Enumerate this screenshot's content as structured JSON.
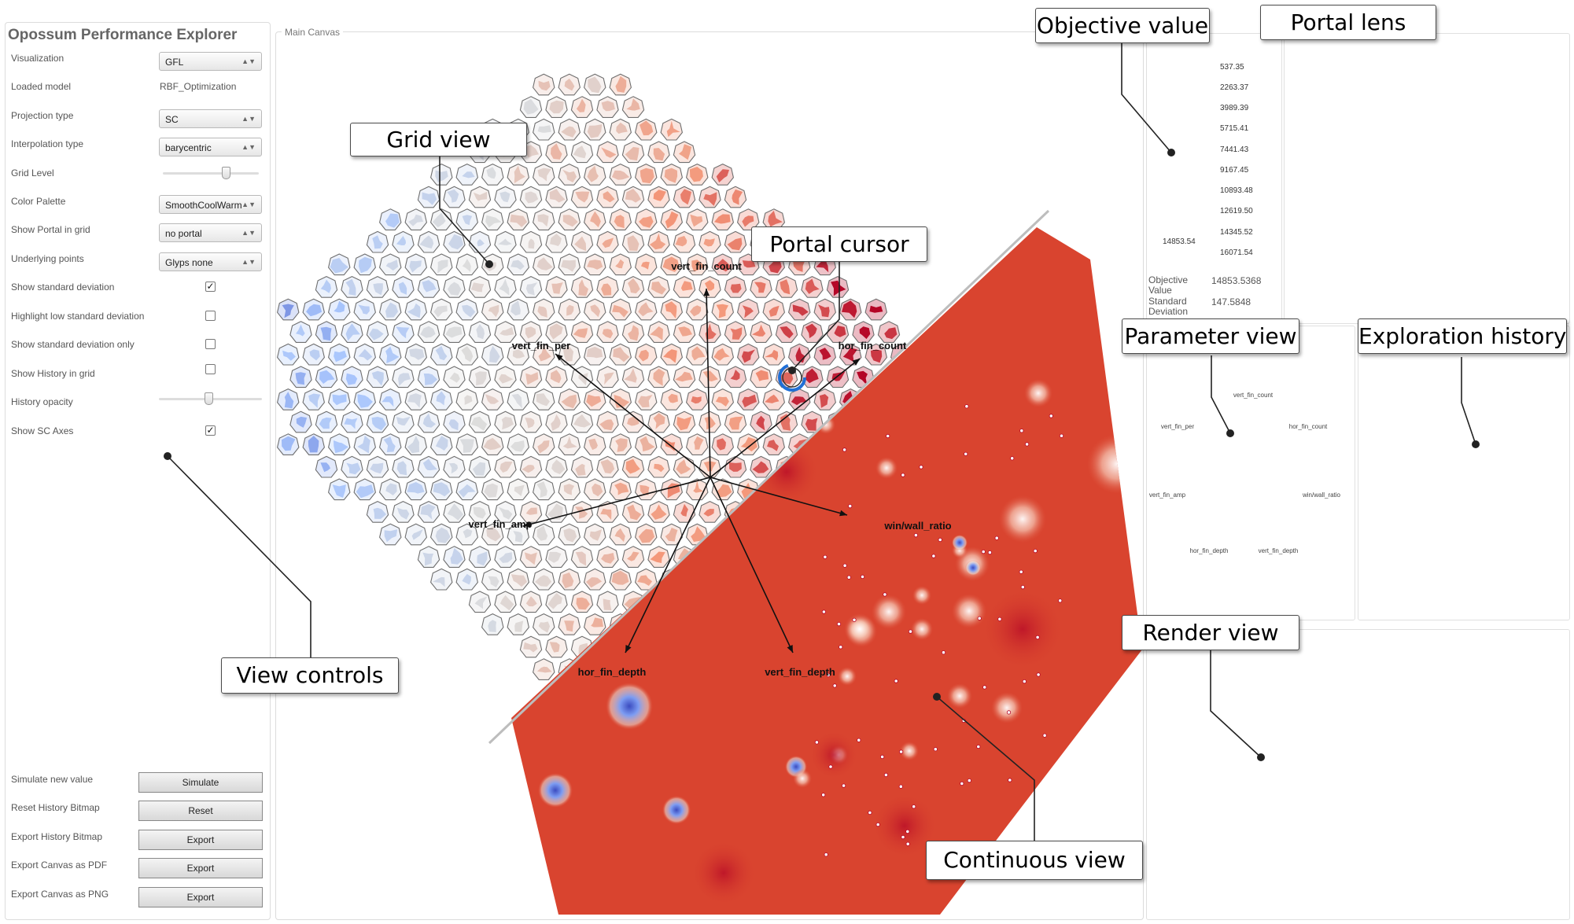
{
  "app": {
    "title": "Opossum Performance Explorer"
  },
  "controls": {
    "visualization": {
      "label": "Visualization",
      "value": "GFL"
    },
    "loaded_model": {
      "label": "Loaded model",
      "value": "RBF_Optimization"
    },
    "projection_type": {
      "label": "Projection type",
      "value": "SC"
    },
    "interpolation_type": {
      "label": "Interpolation type",
      "value": "barycentric"
    },
    "grid_level": {
      "label": "Grid Level"
    },
    "color_palette": {
      "label": "Color Palette",
      "value": "SmoothCoolWarm"
    },
    "show_portal": {
      "label": "Show Portal in grid",
      "value": "no portal"
    },
    "underlying_points": {
      "label": "Underlying points",
      "value": "Glyps none"
    },
    "show_std": {
      "label": "Show standard deviation",
      "checked": true,
      "mark": "✓"
    },
    "highlight_low_std": {
      "label": "Highlight low standard deviation",
      "checked": false
    },
    "show_std_only": {
      "label": "Show standard deviation only",
      "checked": false
    },
    "show_history": {
      "label": "Show History in grid",
      "checked": false
    },
    "history_opacity": {
      "label": "History opacity"
    },
    "show_sc_axes": {
      "label": "Show SC Axes",
      "checked": true,
      "mark": "✓"
    }
  },
  "actions": {
    "simulate": {
      "label": "Simulate new value",
      "button": "Simulate"
    },
    "reset_history": {
      "label": "Reset History Bitmap",
      "button": "Reset"
    },
    "export_history": {
      "label": "Export History Bitmap",
      "button": "Export"
    },
    "export_pdf": {
      "label": "Export Canvas as PDF",
      "button": "Export"
    },
    "export_png": {
      "label": "Export Canvas as PNG",
      "button": "Export"
    }
  },
  "main_canvas": {
    "title": "Main Canvas",
    "axes": [
      "vert_fin_count",
      "hor_fin_count",
      "win/wall_ratio",
      "vert_fin_depth",
      "hor_fin_depth",
      "vert_fin_amp",
      "vert_fin_per"
    ]
  },
  "objective_legend": {
    "ticks": [
      "537.35",
      "2263.37",
      "3989.39",
      "5715.41",
      "7441.43",
      "9167.45",
      "10893.48",
      "12619.50",
      "14345.52",
      "16071.54"
    ],
    "current_marker": "14853.54",
    "colors": {
      "low": "#3b4cc0",
      "mid": "#dddddd",
      "high": "#b40426"
    }
  },
  "objective_info": {
    "value_label": "Objective Value",
    "value": "14853.5368",
    "std_label": "Standard Deviation",
    "std": "147.5848"
  },
  "parameter_view": {
    "axes": [
      "vert_fin_count",
      "hor_fin_count",
      "win/wall_ratio",
      "vert_fin_depth",
      "hor_fin_depth",
      "vert_fin_amp",
      "vert_fin_per"
    ]
  },
  "callouts": {
    "objective_value": "Objective value",
    "portal_lens": "Portal lens",
    "grid_view": "Grid view",
    "portal_cursor": "Portal cursor",
    "parameter_view": "Parameter view",
    "exploration_history": "Exploration history",
    "render_view": "Render view",
    "view_controls": "View controls",
    "continuous_view": "Continuous view"
  },
  "colors": {
    "accent": "#3b4cc0",
    "warm": "#d73c2c",
    "history_bg": "#3a4fcf"
  }
}
